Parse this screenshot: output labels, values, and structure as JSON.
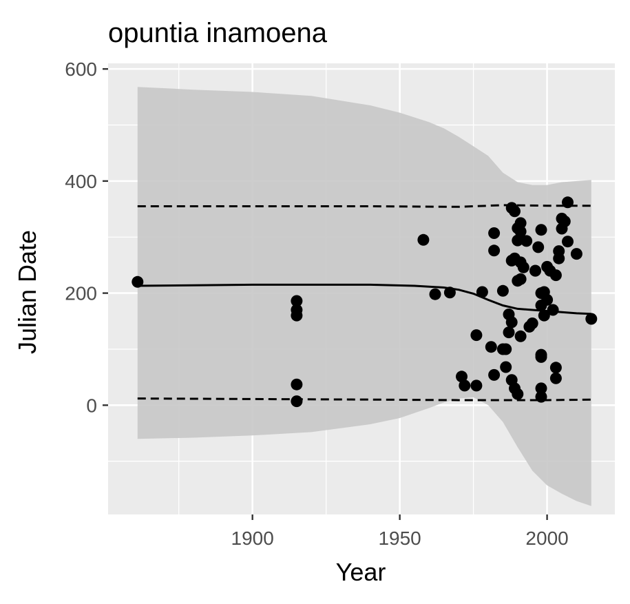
{
  "chart_data": {
    "type": "scatter",
    "title": "opuntia inamoena",
    "xlabel": "Year",
    "ylabel": "Julian Date",
    "xlim": [
      1851,
      2023
    ],
    "ylim": [
      -195,
      610
    ],
    "x_ticks": [
      1900,
      1950,
      2000
    ],
    "y_ticks": [
      0,
      200,
      400,
      600
    ],
    "grid": true,
    "legend": "none",
    "colors": {
      "panel_background": "#ebebeb",
      "grid_major": "#ffffff",
      "ribbon": "#c8c8c8",
      "points": "#000000",
      "lines": "#000000"
    },
    "series": [
      {
        "kind": "points",
        "x": [
          1861,
          1915,
          1915,
          1915,
          1915,
          1915,
          1958,
          1962,
          1967,
          1971,
          1972,
          1976,
          1976,
          1978,
          1981,
          1982,
          1982,
          1982,
          1985,
          1985,
          1986,
          1986,
          1987,
          1987,
          1988,
          1988,
          1988,
          1988,
          1989,
          1989,
          1989,
          1990,
          1990,
          1990,
          1990,
          1991,
          1991,
          1991,
          1991,
          1991,
          1992,
          1993,
          1994,
          1995,
          1996,
          1996,
          1997,
          1998,
          1998,
          1998,
          1998,
          1998,
          1998,
          1998,
          1999,
          1999,
          2000,
          2000,
          2001,
          2002,
          2003,
          2003,
          2003,
          2004,
          2004,
          2005,
          2005,
          2006,
          2007,
          2007,
          2010,
          2015
        ],
        "y": [
          220,
          186,
          170,
          160,
          37,
          7,
          295,
          198,
          201,
          51,
          35,
          125,
          35,
          202,
          104,
          307,
          276,
          54,
          100,
          204,
          100,
          68,
          162,
          130,
          352,
          258,
          148,
          45,
          346,
          262,
          30,
          294,
          222,
          20,
          316,
          255,
          123,
          225,
          310,
          325,
          246,
          293,
          140,
          146,
          240,
          240,
          282,
          313,
          200,
          178,
          90,
          86,
          30,
          15,
          160,
          202,
          188,
          247,
          240,
          170,
          67,
          48,
          232,
          275,
          262,
          315,
          333,
          328,
          362,
          292,
          270,
          154
        ]
      },
      {
        "kind": "smooth-fit",
        "x": [
          1861,
          1880,
          1900,
          1920,
          1940,
          1955,
          1965,
          1970,
          1975,
          1980,
          1985,
          1990,
          1995,
          2000,
          2005,
          2010,
          2015
        ],
        "y": [
          213,
          214,
          215,
          215,
          215,
          213,
          210,
          206,
          199,
          188,
          178,
          172,
          170,
          168,
          166,
          164,
          163
        ]
      },
      {
        "kind": "confidence-band",
        "x": [
          1861,
          1880,
          1900,
          1920,
          1940,
          1950,
          1960,
          1965,
          1970,
          1975,
          1980,
          1985,
          1990,
          1995,
          2000,
          2005,
          2010,
          2015
        ],
        "lower": [
          -60,
          -58,
          -54,
          -48,
          -34,
          -23,
          -5,
          5,
          12,
          14,
          0,
          -30,
          -75,
          -117,
          -143,
          -158,
          -171,
          -180
        ],
        "upper": [
          568,
          563,
          559,
          552,
          535,
          522,
          505,
          494,
          479,
          462,
          445,
          415,
          398,
          393,
          393,
          398,
          400,
          402
        ]
      },
      {
        "kind": "upper-dashed-quantile",
        "x": [
          1861,
          1900,
          1940,
          1970,
          1985,
          2000,
          2015
        ],
        "y": [
          355,
          355,
          355,
          354,
          357,
          356,
          356
        ]
      },
      {
        "kind": "lower-dashed-quantile",
        "x": [
          1861,
          1900,
          1940,
          1970,
          1985,
          2000,
          2015
        ],
        "y": [
          12,
          11,
          10,
          9,
          9,
          9,
          10
        ]
      }
    ]
  }
}
